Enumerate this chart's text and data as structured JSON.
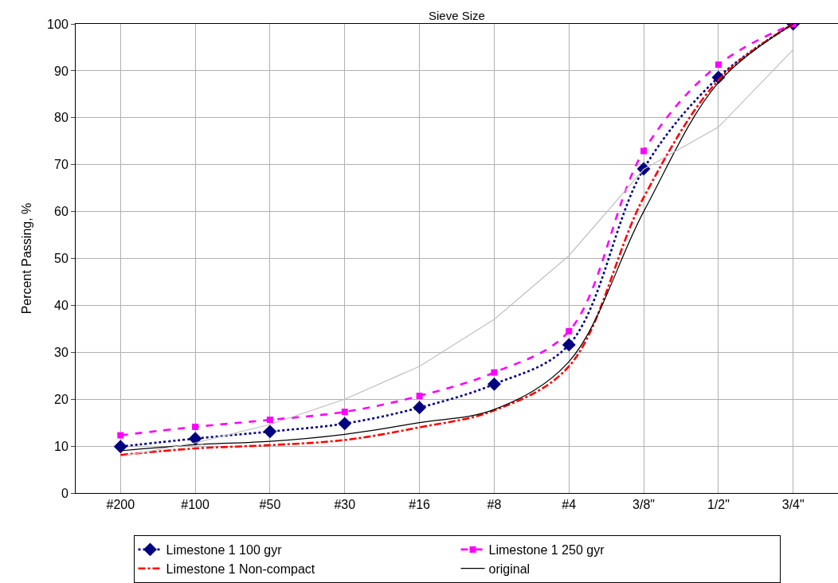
{
  "chart_data": {
    "type": "line",
    "xlabel": "Sieve Size",
    "ylabel": "Percent Passing, %",
    "categories": [
      "#200",
      "#100",
      "#50",
      "#30",
      "#16",
      "#8",
      "#4",
      "3/8\"",
      "1/2\"",
      "3/4\""
    ],
    "ylim": [
      0,
      100
    ],
    "yticks": [
      0,
      10,
      20,
      30,
      40,
      50,
      60,
      70,
      80,
      90,
      100
    ],
    "grid": true,
    "legend": "bottom",
    "series": [
      {
        "name": "Limestone 1 100 gyr",
        "color": "#000080",
        "line_style": "dotted",
        "marker": "diamond",
        "values": [
          9.9,
          11.6,
          13.1,
          14.8,
          18.2,
          23.2,
          31.6,
          69.1,
          88.6,
          100
        ]
      },
      {
        "name": "Limestone 1 250 gyr",
        "color": "#ff00ff",
        "line_style": "dashed",
        "marker": "square",
        "values": [
          12.3,
          14.1,
          15.6,
          17.3,
          20.7,
          25.7,
          34.5,
          72.9,
          91.3,
          100
        ]
      },
      {
        "name": "Limestone 1 Non-compact",
        "color": "#ff0000",
        "line_style": "dashdot",
        "marker": "none",
        "values": [
          8.1,
          9.5,
          10.2,
          11.3,
          14,
          17.6,
          27,
          63,
          88,
          100
        ]
      },
      {
        "name": "original",
        "color": "#000000",
        "line_style": "solid",
        "marker": "none",
        "values": [
          9,
          10.3,
          11,
          12.5,
          15,
          17.8,
          28,
          60,
          87.5,
          100
        ]
      },
      {
        "color": "#c0c0c0",
        "line_style": "solid",
        "marker": "none",
        "values": [
          7.8,
          10.7,
          14.6,
          20,
          27,
          37,
          50.6,
          69,
          78,
          94.5
        ]
      }
    ]
  }
}
